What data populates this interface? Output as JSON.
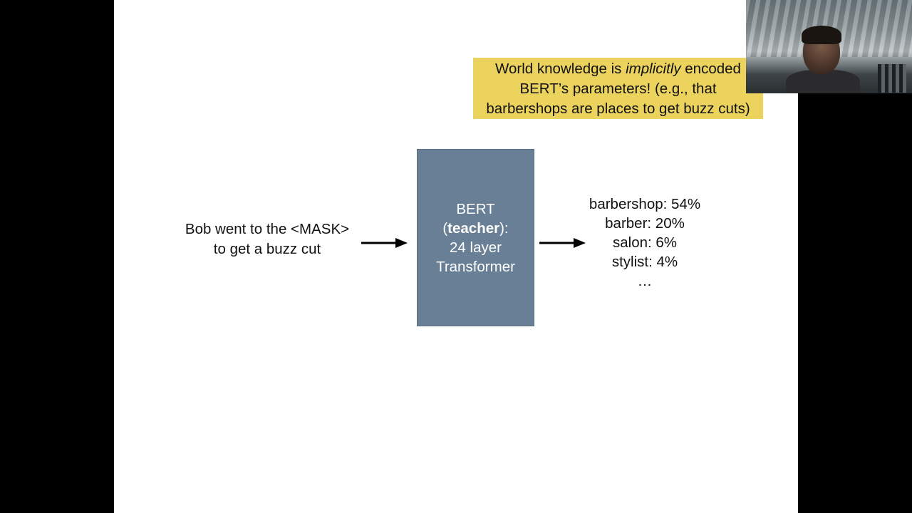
{
  "callout": {
    "line1_pre": "World knowledge is ",
    "line1_emph": "implicitly",
    "line1_post": " encoded",
    "line2": "BERT’s parameters! (e.g., that",
    "line3": "barbershops are places to get buzz cuts)",
    "bg_color": "#ecd35e"
  },
  "input": {
    "line1": "Bob went to the <MASK>",
    "line2": "to get a buzz cut"
  },
  "model": {
    "line1": "BERT",
    "line2_open": "(",
    "line2_bold": "teacher",
    "line2_close": "):",
    "line3": "24 layer",
    "line4": "Transformer",
    "box_color": "#687f95"
  },
  "outputs": {
    "items": [
      "barbershop: 54%",
      "barber: 20%",
      "salon: 6%",
      "stylist: 4%",
      "…"
    ]
  },
  "icons": {
    "arrow_in": "right-arrow-icon",
    "arrow_out": "right-arrow-icon"
  }
}
